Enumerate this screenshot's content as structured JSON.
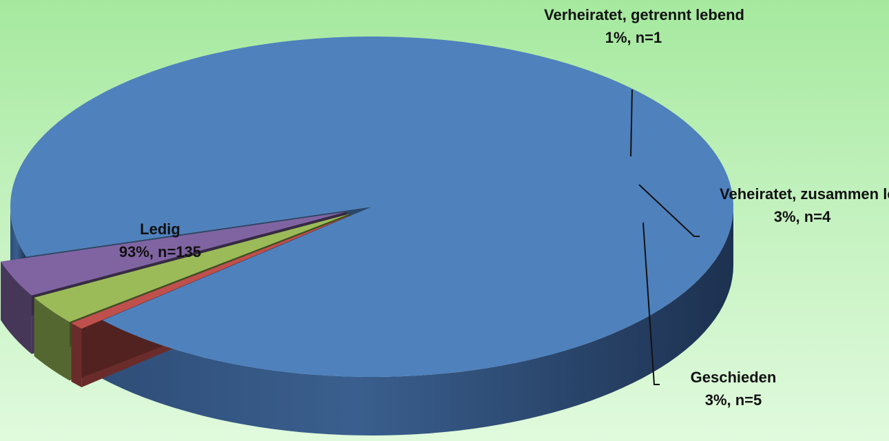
{
  "chart_data": {
    "type": "pie",
    "slices": [
      {
        "name": "Ledig",
        "label": "93%, n=135",
        "percent": 93,
        "n": 135,
        "color": "#4f81bd"
      },
      {
        "name": "Verheiratet, getrennt lebend",
        "label": "1%, n=1",
        "percent": 1,
        "n": 1,
        "color": "#c0504d"
      },
      {
        "name": "Veheiratet, zusammen lebend",
        "label": "3%, n=4",
        "percent": 3,
        "n": 4,
        "color": "#9bbb59"
      },
      {
        "name": "Geschieden",
        "label": "3%, n=5",
        "percent": 3,
        "n": 5,
        "color": "#8064a2"
      }
    ],
    "style": "3d-exploded",
    "legend": "none"
  }
}
